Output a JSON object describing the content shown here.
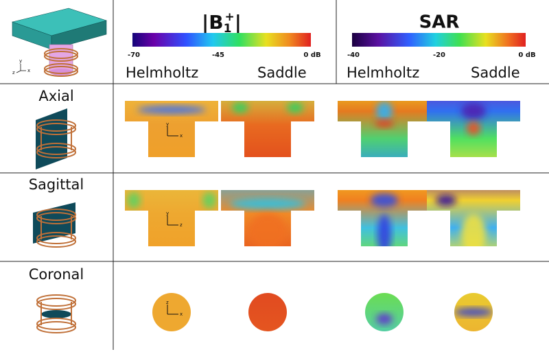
{
  "header": {
    "b1": {
      "open": "|",
      "base": "B",
      "sub": "1",
      "sup": "+",
      "close": "|",
      "scale": [
        "-70",
        "-45",
        "0 dB"
      ],
      "columns": [
        "Helmholtz",
        "Saddle"
      ]
    },
    "sar": {
      "title": "SAR",
      "scale": [
        "-40",
        "-20",
        "0 dB"
      ],
      "columns": [
        "Helmholtz",
        "Saddle"
      ]
    },
    "axes": [
      "z",
      "y",
      "x"
    ]
  },
  "rows": [
    {
      "label": "Axial",
      "axes": [
        "y",
        "x"
      ]
    },
    {
      "label": "Sagittal",
      "axes": [
        "y",
        "z"
      ]
    },
    {
      "label": "Coronal",
      "axes": [
        "z",
        "x"
      ]
    }
  ]
}
